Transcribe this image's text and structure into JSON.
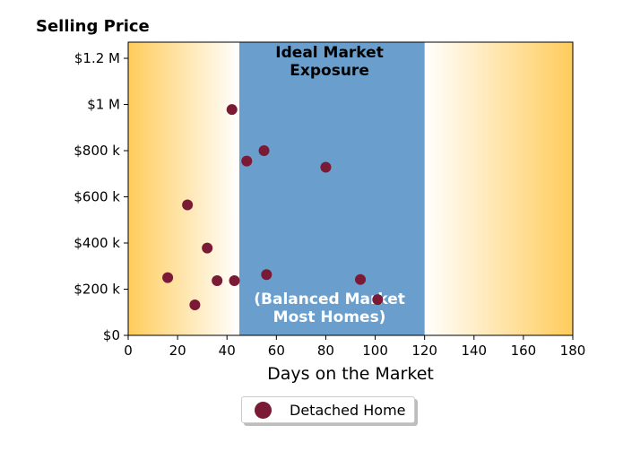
{
  "chart_data": {
    "type": "scatter",
    "title": "Selling Price",
    "xlabel": "Days on the Market",
    "ylabel": "",
    "xlim": [
      0,
      180
    ],
    "ylim": [
      0,
      1270000
    ],
    "x_ticks": [
      0,
      20,
      40,
      60,
      80,
      100,
      120,
      140,
      160,
      180
    ],
    "x_tick_labels": [
      "0",
      "20",
      "40",
      "60",
      "80",
      "100",
      "120",
      "140",
      "160",
      "180"
    ],
    "y_ticks": [
      0,
      200000,
      400000,
      600000,
      800000,
      1000000,
      1200000
    ],
    "y_tick_labels": [
      "$0",
      "$200 k",
      "$400 k",
      "$600 k",
      "$800 k",
      "$1 M",
      "$1.2 M"
    ],
    "grid": false,
    "legend_position": "bottom-center",
    "series": [
      {
        "name": "Detached Home",
        "color": "#7a1a35",
        "points": [
          {
            "x": 16,
            "y": 250000
          },
          {
            "x": 24,
            "y": 565000
          },
          {
            "x": 27,
            "y": 132000
          },
          {
            "x": 32,
            "y": 378000
          },
          {
            "x": 36,
            "y": 237000
          },
          {
            "x": 42,
            "y": 978000
          },
          {
            "x": 43,
            "y": 237000
          },
          {
            "x": 48,
            "y": 755000
          },
          {
            "x": 55,
            "y": 800000
          },
          {
            "x": 56,
            "y": 263000
          },
          {
            "x": 80,
            "y": 728000
          },
          {
            "x": 94,
            "y": 242000
          },
          {
            "x": 101,
            "y": 155000
          }
        ]
      }
    ],
    "bands": [
      {
        "from": 45,
        "to": 120,
        "color": "#6a9fcd"
      }
    ],
    "background_gradient": {
      "edge_color": "#ffcc5c",
      "center_color": "#ffffff"
    },
    "annotations": [
      {
        "text_lines": [
          "Ideal Market",
          "Exposure"
        ],
        "x": 81.5,
        "position": "top",
        "color": "#000000"
      },
      {
        "text_lines": [
          "(Balanced Market",
          "Most Homes)"
        ],
        "x": 81.5,
        "position": "bottom",
        "color": "#ffffff"
      }
    ]
  }
}
